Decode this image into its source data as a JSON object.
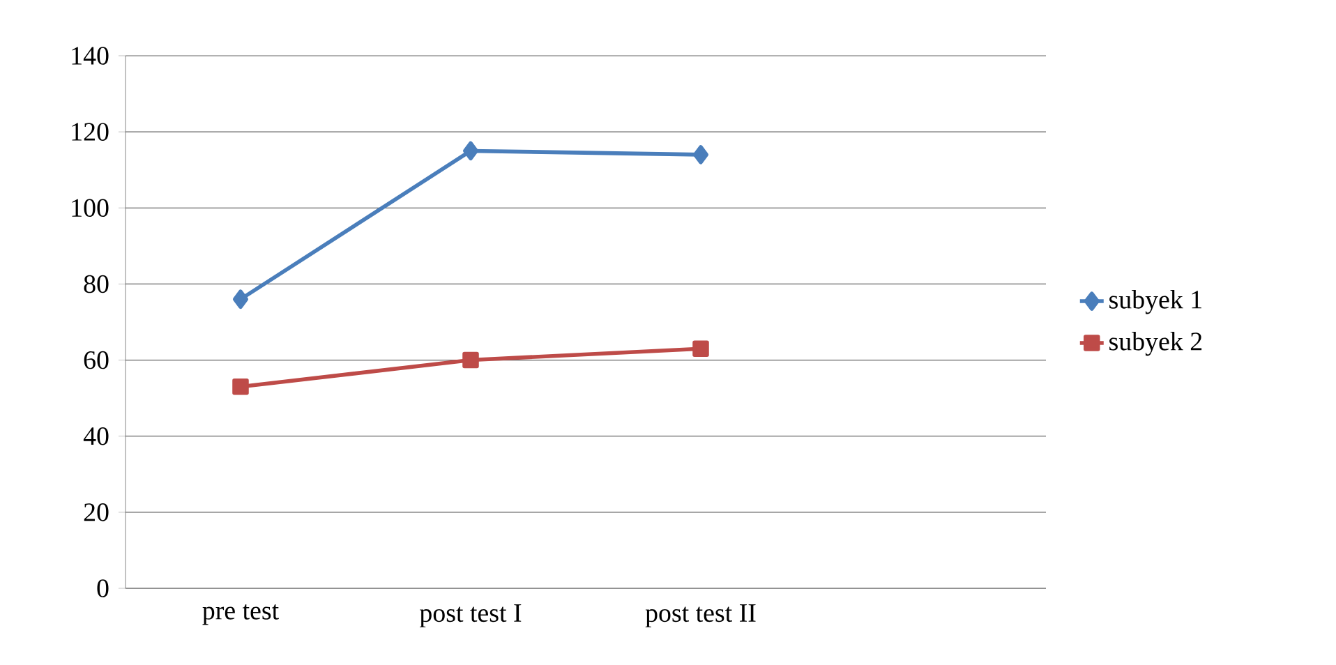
{
  "chart_data": {
    "type": "line",
    "categories": [
      "pre test",
      "post test I",
      "post test II",
      null
    ],
    "series": [
      {
        "name": "subyek 1",
        "color": "#4a7ebb",
        "marker": "diamond",
        "values": [
          76,
          115,
          114,
          null
        ]
      },
      {
        "name": "subyek 2",
        "color": "#be4b48",
        "marker": "square",
        "values": [
          53,
          60,
          63,
          null
        ]
      }
    ],
    "ylim": [
      0,
      140
    ],
    "yticks": [
      0,
      20,
      40,
      60,
      80,
      100,
      120,
      140
    ],
    "grid": "y",
    "legend": "right",
    "line_style": "solid"
  }
}
